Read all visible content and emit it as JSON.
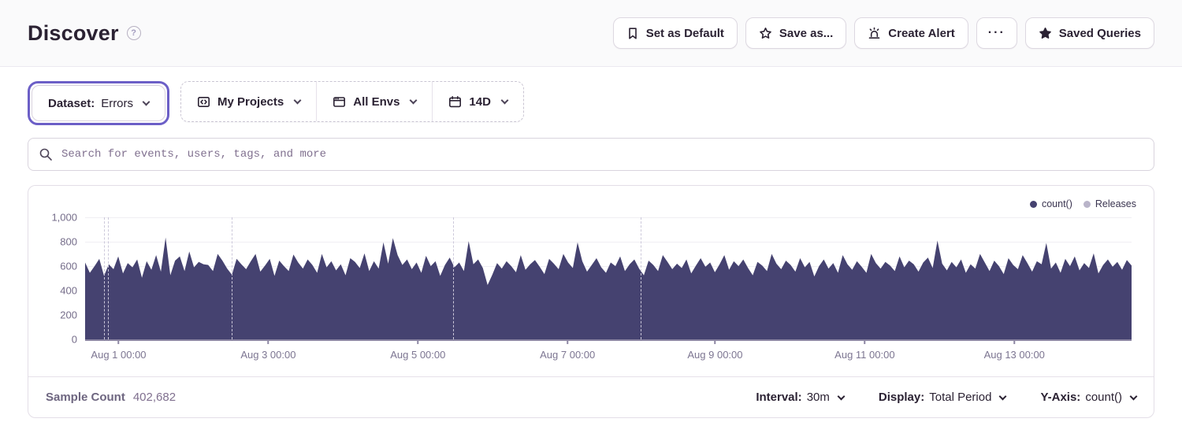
{
  "header": {
    "title": "Discover",
    "buttons": [
      {
        "label": "Set as Default",
        "icon": "bookmark-icon"
      },
      {
        "label": "Save as...",
        "icon": "star-outline-icon"
      },
      {
        "label": "Create Alert",
        "icon": "siren-icon"
      },
      {
        "label": "···",
        "icon": "ellipsis-icon"
      },
      {
        "label": "Saved Queries",
        "icon": "star-filled-icon"
      }
    ]
  },
  "filters": {
    "dataset": {
      "label": "Dataset:",
      "value": "Errors"
    },
    "projects": {
      "label": "My Projects"
    },
    "environments": {
      "label": "All Envs"
    },
    "date_range": {
      "label": "14D"
    }
  },
  "search": {
    "placeholder": "Search for events, users, tags, and more"
  },
  "chart_data": {
    "type": "area",
    "title": "",
    "xlabel": "",
    "ylabel": "",
    "ylim": [
      0,
      1000
    ],
    "grid": "horizontal",
    "interval": "30m",
    "x_range": "Jul 31 ~13:00 - Aug 14 ~13:00 (14 days)",
    "legend_position": "top-right",
    "legend": [
      {
        "label": "count()",
        "color": "#454270"
      },
      {
        "label": "Releases",
        "color": "#b9b4c9"
      }
    ],
    "y_ticks": [
      {
        "value": 0,
        "label": "0"
      },
      {
        "value": 200,
        "label": "200"
      },
      {
        "value": 400,
        "label": "400"
      },
      {
        "value": 600,
        "label": "600"
      },
      {
        "value": 800,
        "label": "800"
      },
      {
        "value": 1000,
        "label": "1,000"
      }
    ],
    "x_ticks": [
      {
        "pos": 0.032,
        "label": "Aug 1 00:00"
      },
      {
        "pos": 0.175,
        "label": "Aug 3 00:00"
      },
      {
        "pos": 0.318,
        "label": "Aug 5 00:00"
      },
      {
        "pos": 0.461,
        "label": "Aug 7 00:00"
      },
      {
        "pos": 0.602,
        "label": "Aug 9 00:00"
      },
      {
        "pos": 0.745,
        "label": "Aug 11 00:00"
      },
      {
        "pos": 0.888,
        "label": "Aug 13 00:00"
      }
    ],
    "releases_x": [
      0.018,
      0.022,
      0.14,
      0.352,
      0.531
    ],
    "series": [
      {
        "name": "count()",
        "color": "#454270",
        "values": [
          630,
          545,
          600,
          660,
          520,
          615,
          575,
          680,
          540,
          625,
          590,
          655,
          505,
          640,
          570,
          690,
          555,
          835,
          525,
          645,
          680,
          560,
          720,
          590,
          635,
          615,
          610,
          560,
          700,
          645,
          580,
          530,
          660,
          615,
          575,
          640,
          700,
          555,
          605,
          660,
          520,
          645,
          600,
          560,
          695,
          630,
          580,
          655,
          610,
          545,
          700,
          590,
          640,
          565,
          615,
          525,
          665,
          635,
          585,
          705,
          560,
          640,
          580,
          795,
          620,
          830,
          690,
          610,
          655,
          575,
          630,
          545,
          685,
          600,
          640,
          520,
          610,
          670,
          590,
          630,
          560,
          805,
          615,
          655,
          585,
          445,
          530,
          625,
          580,
          640,
          600,
          550,
          690,
          570,
          615,
          650,
          595,
          535,
          660,
          620,
          575,
          700,
          630,
          585,
          795,
          640,
          555,
          610,
          665,
          590,
          545,
          630,
          600,
          680,
          560,
          615,
          655,
          580,
          525,
          645,
          610,
          560,
          690,
          635,
          575,
          620,
          585,
          655,
          540,
          605,
          665,
          595,
          630,
          550,
          615,
          690,
          570,
          640,
          600,
          655,
          585,
          525,
          635,
          605,
          560,
          700,
          620,
          575,
          645,
          610,
          555,
          665,
          590,
          635,
          515,
          600,
          655,
          580,
          625,
          545,
          690,
          615,
          570,
          640,
          595,
          545,
          700,
          625,
          580,
          635,
          605,
          560,
          680,
          590,
          645,
          615,
          555,
          630,
          670,
          585,
          810,
          620,
          565,
          635,
          590,
          655,
          545,
          615,
          580,
          700,
          630,
          560,
          645,
          600,
          535,
          665,
          610,
          575,
          690,
          625,
          555,
          640,
          615,
          790,
          580,
          630,
          545,
          660,
          600,
          680,
          565,
          625,
          585,
          705,
          540,
          610,
          655,
          595,
          635,
          570,
          650,
          605
        ]
      }
    ]
  },
  "footer": {
    "sample_count_label": "Sample Count",
    "sample_count_value": "402,682",
    "interval": {
      "label": "Interval:",
      "value": "30m"
    },
    "display": {
      "label": "Display:",
      "value": "Total Period"
    },
    "y_axis": {
      "label": "Y-Axis:",
      "value": "count()"
    }
  },
  "colors": {
    "accent": "#6c5fc7",
    "chart_fill": "#454270",
    "release_line": "#ccc8da",
    "header_bg": "#fafafb",
    "border": "#e3dee7",
    "text": "#2b2233",
    "muted": "#80708f"
  }
}
